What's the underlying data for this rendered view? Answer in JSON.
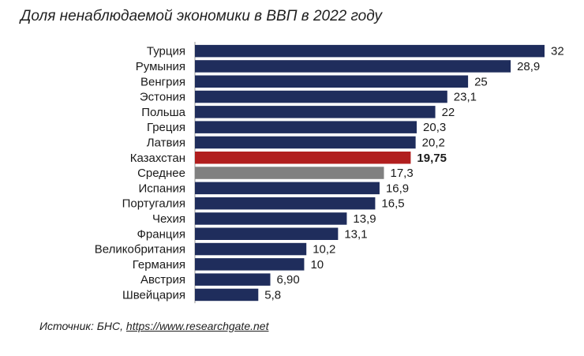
{
  "colors": {
    "default": "#1f2d5c",
    "highlight": "#b11e1e",
    "average": "#808080"
  },
  "source": {
    "prefix": "Источник: БНС, ",
    "link": "https://www.researchgate.net"
  },
  "chart_data": {
    "type": "bar",
    "orientation": "horizontal",
    "title": "Доля ненаблюдаемой экономики в ВВП в 2022 году",
    "grid": false,
    "legend": "none",
    "xlim": [
      0,
      32
    ],
    "categories": [
      "Турция",
      "Румыния",
      "Венгрия",
      "Эстония",
      "Польша",
      "Греция",
      "Латвия",
      "Казахстан",
      "Среднее",
      "Испания",
      "Португалия",
      "Чехия",
      "Франция",
      "Великобритания",
      "Германия",
      "Австрия",
      "Швейцария"
    ],
    "values": [
      32,
      28.9,
      25,
      23.1,
      22,
      20.3,
      20.2,
      19.75,
      17.3,
      16.9,
      16.5,
      13.9,
      13.1,
      10.2,
      10,
      6.9,
      5.8
    ],
    "labels": [
      "32",
      "28,9",
      "25",
      "23,1",
      "22",
      "20,3",
      "20,2",
      "19,75",
      "17,3",
      "16,9",
      "16,5",
      "13,9",
      "13,1",
      "10,2",
      "10",
      "6,90",
      "5,8"
    ],
    "highlight": "Казахстан",
    "average": "Среднее"
  }
}
